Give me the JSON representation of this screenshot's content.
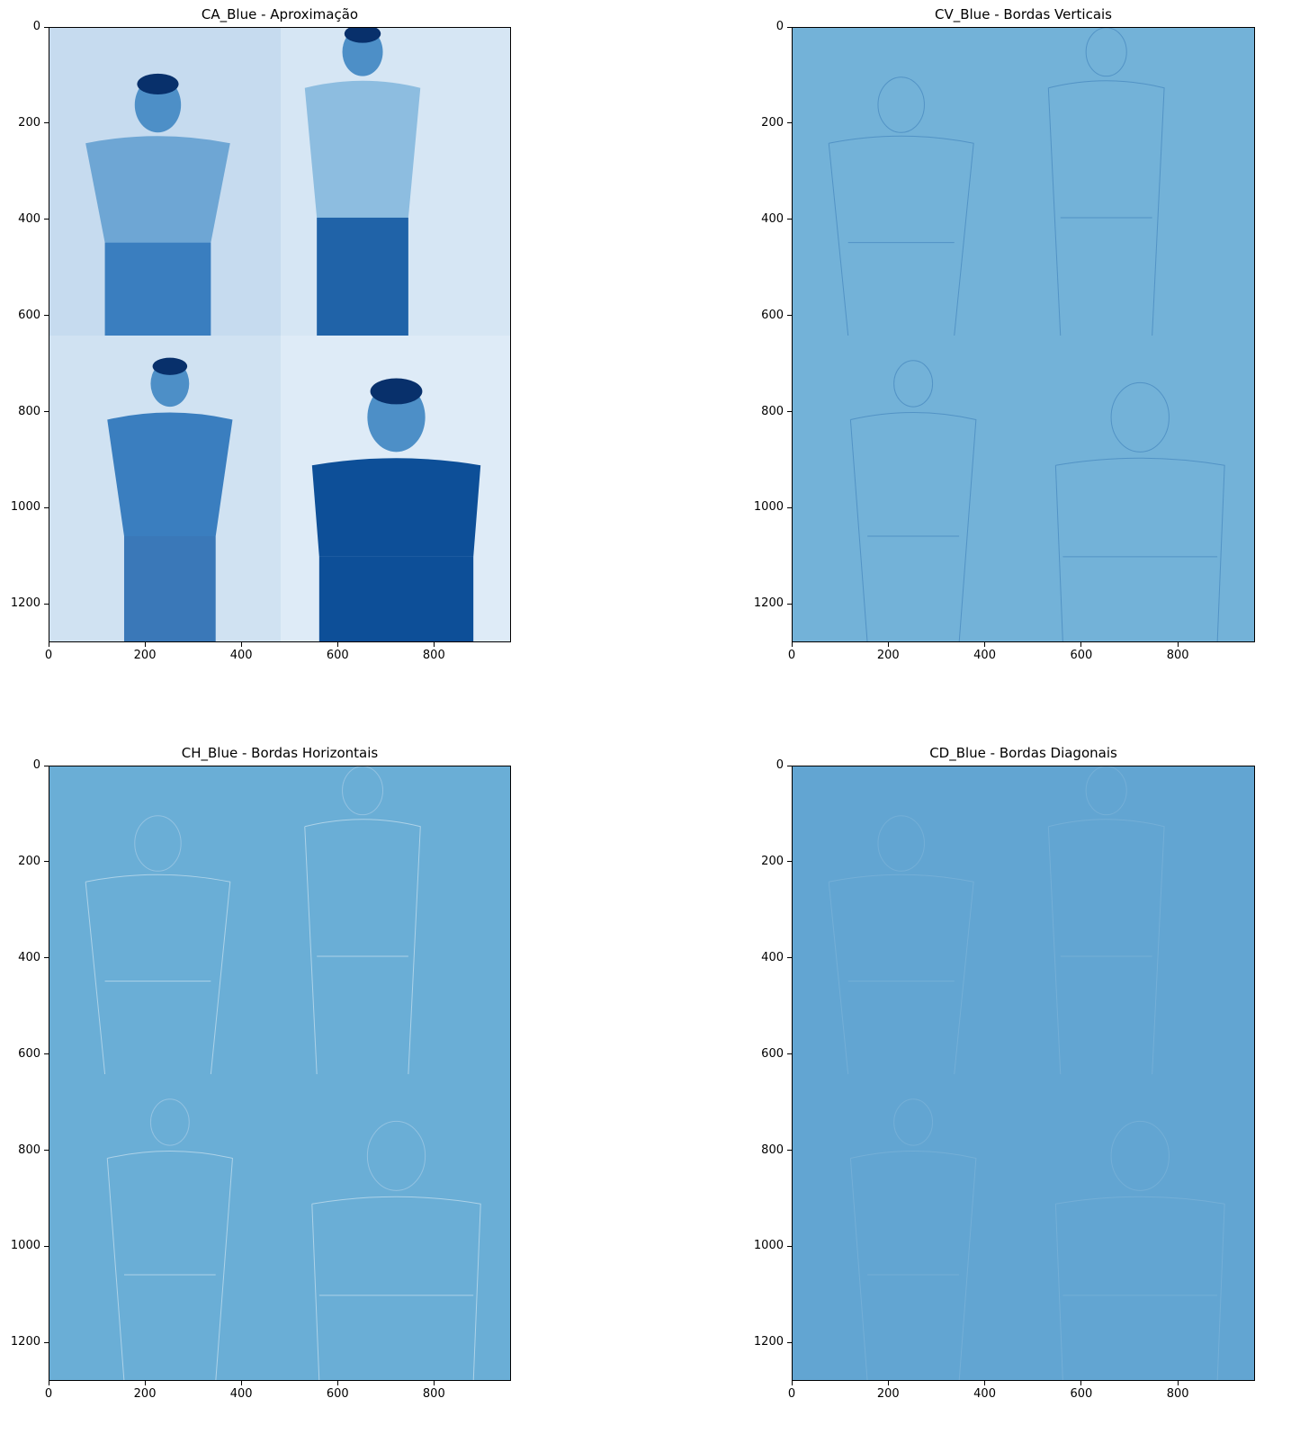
{
  "chart_data": [
    {
      "type": "heatmap",
      "title": "CA_Blue - Aproximação",
      "colormap": "Blues",
      "background_color": "#2a6cb0",
      "xlim": [
        0,
        960
      ],
      "ylim": [
        1280,
        0
      ],
      "x_ticks": [
        0,
        200,
        400,
        600,
        800
      ],
      "y_ticks": [
        0,
        200,
        400,
        600,
        800,
        1000,
        1200
      ],
      "content": "four-photo-collage"
    },
    {
      "type": "heatmap",
      "title": "CV_Blue - Bordas Verticais",
      "colormap": "Blues",
      "background_color": "#73b2d8",
      "xlim": [
        0,
        960
      ],
      "ylim": [
        1280,
        0
      ],
      "x_ticks": [
        0,
        200,
        400,
        600,
        800
      ],
      "y_ticks": [
        0,
        200,
        400,
        600,
        800,
        1000,
        1200
      ],
      "content": "vertical-edges"
    },
    {
      "type": "heatmap",
      "title": "CH_Blue - Bordas Horizontais",
      "colormap": "Blues",
      "background_color": "#6aaed6",
      "xlim": [
        0,
        960
      ],
      "ylim": [
        1280,
        0
      ],
      "x_ticks": [
        0,
        200,
        400,
        600,
        800
      ],
      "y_ticks": [
        0,
        200,
        400,
        600,
        800,
        1000,
        1200
      ],
      "content": "horizontal-edges"
    },
    {
      "type": "heatmap",
      "title": "CD_Blue - Bordas Diagonais",
      "colormap": "Blues",
      "background_color": "#62a5d2",
      "xlim": [
        0,
        960
      ],
      "ylim": [
        1280,
        0
      ],
      "x_ticks": [
        0,
        200,
        400,
        600,
        800
      ],
      "y_ticks": [
        0,
        200,
        400,
        600,
        800,
        1000,
        1200
      ],
      "content": "diagonal-edges"
    }
  ]
}
